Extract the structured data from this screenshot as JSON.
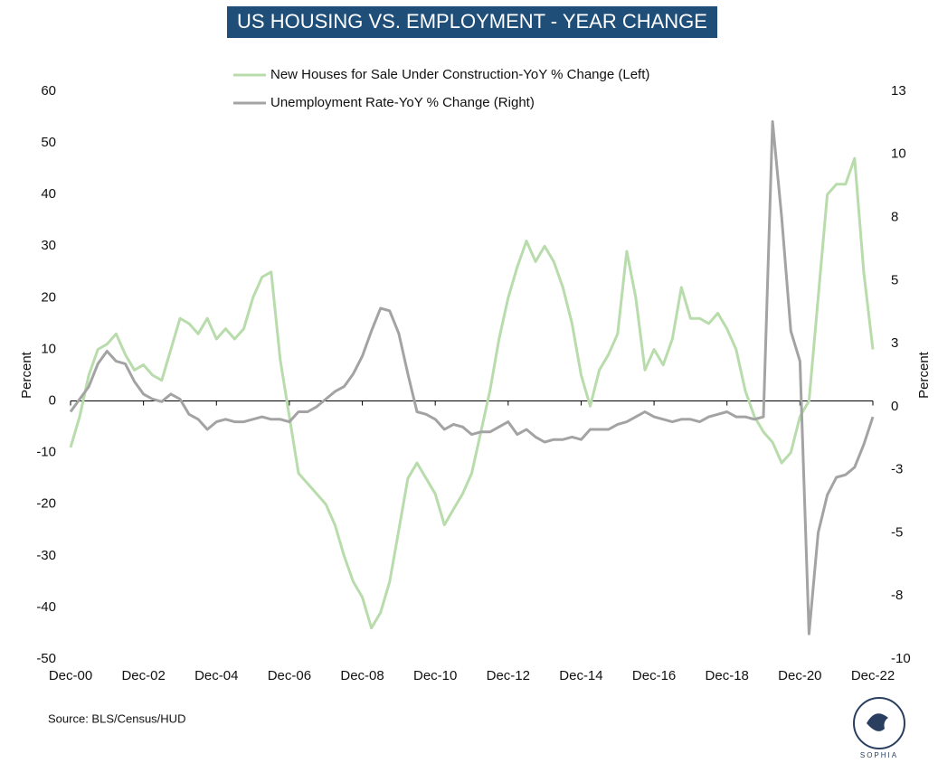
{
  "chart_data": {
    "type": "line",
    "title": "US HOUSING VS. EMPLOYMENT - YEAR CHANGE",
    "y_label": "Percent",
    "y2_label": "Percent",
    "source": "Source: BLS/Census/HUD",
    "logo": "SOPHIA",
    "categories": [
      "Dec-00",
      null,
      null,
      null,
      null,
      null,
      null,
      null,
      "Dec-02",
      null,
      null,
      null,
      null,
      null,
      null,
      null,
      "Dec-04",
      null,
      null,
      null,
      null,
      null,
      null,
      null,
      "Dec-06",
      null,
      null,
      null,
      null,
      null,
      null,
      null,
      "Dec-08",
      null,
      null,
      null,
      null,
      null,
      null,
      null,
      "Dec-10",
      null,
      null,
      null,
      null,
      null,
      null,
      null,
      "Dec-12",
      null,
      null,
      null,
      null,
      null,
      null,
      null,
      "Dec-14",
      null,
      null,
      null,
      null,
      null,
      null,
      null,
      "Dec-16",
      null,
      null,
      null,
      null,
      null,
      null,
      null,
      "Dec-18",
      null,
      null,
      null,
      null,
      null,
      null,
      null,
      "Dec-20",
      null,
      null,
      null,
      null,
      null,
      null,
      null,
      "Dec-22"
    ],
    "ylim": [
      -50,
      60
    ],
    "yticks": [
      -50,
      -40,
      -30,
      -20,
      -10,
      0,
      10,
      20,
      30,
      40,
      50,
      60
    ],
    "y2lim": [
      -10,
      12.5
    ],
    "y2ticks": [
      -10,
      {
        "value": -7.5,
        "label": "-8"
      },
      -5,
      {
        "value": -2.5,
        "label": "-3"
      },
      0,
      {
        "value": 2.5,
        "label": "3"
      },
      5,
      {
        "value": 7.5,
        "label": "8"
      },
      10,
      {
        "value": 12.5,
        "label": "13"
      }
    ],
    "series": [
      {
        "name": "New Houses for Sale Under Construction-YoY % Change (Left)",
        "color": "#b8dcab",
        "values": [
          -9,
          -3,
          5,
          10,
          11,
          13,
          9,
          6,
          7,
          5,
          4,
          10,
          16,
          15,
          13,
          16,
          12,
          14,
          12,
          14,
          20,
          24,
          25,
          8,
          -3,
          -14,
          -16,
          -18,
          -20,
          -24,
          -30,
          -35,
          -38,
          -44,
          -41,
          -35,
          -25,
          -15,
          -12,
          -15,
          -18,
          -24,
          -21,
          -18,
          -14,
          -6,
          2,
          12,
          20,
          26,
          31,
          27,
          30,
          27,
          22,
          15,
          5,
          -1,
          6,
          9,
          13,
          29,
          20,
          6,
          10,
          7,
          12,
          22,
          16,
          16,
          15,
          17,
          14,
          10,
          2,
          -3,
          -6,
          -8,
          -12,
          -10,
          -3,
          0,
          20,
          40,
          42,
          42,
          47,
          25,
          10
        ]
      },
      {
        "name": "Unemployment Rate-YoY % Change (Right)",
        "color": "#a3a3a3",
        "axis": "y2",
        "values": [
          -0.2,
          0.3,
          0.8,
          1.7,
          2.2,
          1.8,
          1.7,
          1.0,
          0.5,
          0.3,
          0.2,
          0.5,
          0.3,
          -0.3,
          -0.5,
          -0.9,
          -0.6,
          -0.5,
          -0.6,
          -0.6,
          -0.5,
          -0.4,
          -0.5,
          -0.5,
          -0.6,
          -0.2,
          -0.2,
          0.0,
          0.3,
          0.6,
          0.8,
          1.3,
          2.0,
          3.0,
          3.9,
          3.8,
          2.9,
          1.3,
          -0.2,
          -0.3,
          -0.5,
          -0.9,
          -0.7,
          -0.8,
          -1.1,
          -1.0,
          -1.0,
          -0.8,
          -0.6,
          -1.1,
          -0.9,
          -1.2,
          -1.4,
          -1.3,
          -1.3,
          -1.2,
          -1.3,
          -0.9,
          -0.9,
          -0.9,
          -0.7,
          -0.6,
          -0.4,
          -0.2,
          -0.4,
          -0.5,
          -0.6,
          -0.5,
          -0.5,
          -0.6,
          -0.4,
          -0.3,
          -0.2,
          -0.4,
          -0.4,
          -0.5,
          -0.4,
          11.3,
          7.5,
          3.0,
          1.8,
          -9.0,
          -5.0,
          -3.5,
          -2.8,
          -2.7,
          -2.4,
          -1.5,
          -0.4
        ]
      }
    ]
  }
}
